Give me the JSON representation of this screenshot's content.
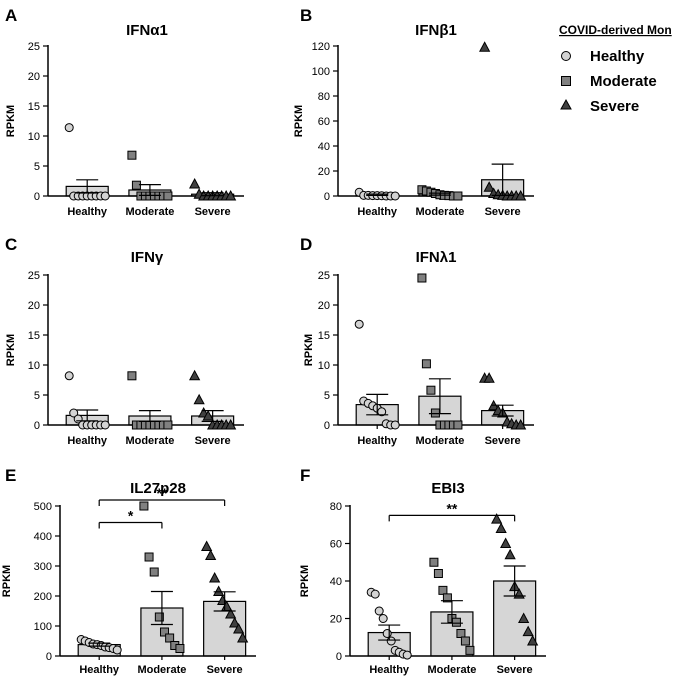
{
  "legend": {
    "title": "COVID-derived Mon",
    "items": [
      {
        "label": "Healthy",
        "marker": "circle",
        "fill": "#d3d3d3"
      },
      {
        "label": "Moderate",
        "marker": "square",
        "fill": "#808080"
      },
      {
        "label": "Severe",
        "marker": "triangle",
        "fill": "#404040"
      }
    ]
  },
  "colors": {
    "bar": "#d6d6d6",
    "stroke": "#000000"
  },
  "chart_data": [
    {
      "id": "A",
      "type": "bar",
      "title": "IFNα1",
      "ylabel": "RPKM",
      "ylim": [
        0,
        25
      ],
      "yticks": [
        0,
        5,
        10,
        15,
        20,
        25
      ],
      "categories": [
        "Healthy",
        "Moderate",
        "Severe"
      ],
      "values": [
        1.6,
        1.0,
        0.3
      ],
      "errors": [
        1.1,
        0.9,
        0.25
      ],
      "points": [
        [
          11.4,
          0,
          0,
          0,
          0,
          0,
          0,
          0,
          0
        ],
        [
          6.8,
          1.8,
          0,
          0,
          0,
          0,
          0,
          0,
          0
        ],
        [
          2.0,
          0.3,
          0,
          0,
          0,
          0,
          0,
          0,
          0
        ]
      ],
      "significance": []
    },
    {
      "id": "B",
      "type": "bar",
      "title": "IFNβ1",
      "ylabel": "RPKM",
      "ylim": [
        0,
        120
      ],
      "yticks": [
        0,
        20,
        40,
        60,
        80,
        100,
        120
      ],
      "categories": [
        "Healthy",
        "Moderate",
        "Severe"
      ],
      "values": [
        1.0,
        1.5,
        13
      ],
      "errors": [
        0.5,
        0.8,
        12.5
      ],
      "points": [
        [
          3,
          0.5,
          0.5,
          0.3,
          0.3,
          0.2,
          0,
          0,
          0
        ],
        [
          5,
          4,
          3,
          2,
          1,
          0.5,
          0.3,
          0,
          0
        ],
        [
          119,
          7,
          2,
          1,
          0.5,
          0,
          0,
          0,
          0
        ]
      ],
      "significance": []
    },
    {
      "id": "C",
      "type": "bar",
      "title": "IFNγ",
      "ylabel": "RPKM",
      "ylim": [
        0,
        25
      ],
      "yticks": [
        0,
        5,
        10,
        15,
        20,
        25
      ],
      "categories": [
        "Healthy",
        "Moderate",
        "Severe"
      ],
      "values": [
        1.6,
        1.5,
        1.5
      ],
      "errors": [
        0.9,
        0.9,
        0.9
      ],
      "points": [
        [
          8.2,
          2.0,
          1.0,
          0,
          0,
          0,
          0,
          0,
          0
        ],
        [
          8.2,
          0,
          0,
          0,
          0,
          0,
          0,
          0,
          0
        ],
        [
          8.2,
          4.2,
          2.0,
          1.5,
          0,
          0,
          0,
          0,
          0
        ]
      ],
      "significance": []
    },
    {
      "id": "D",
      "type": "bar",
      "title": "IFNλ1",
      "ylabel": "RPKM",
      "ylim": [
        0,
        25
      ],
      "yticks": [
        0,
        5,
        10,
        15,
        20,
        25
      ],
      "categories": [
        "Healthy",
        "Moderate",
        "Severe"
      ],
      "values": [
        3.4,
        4.8,
        2.4
      ],
      "errors": [
        1.7,
        2.9,
        0.9
      ],
      "points": [
        [
          16.8,
          4.0,
          3.6,
          3.2,
          2.8,
          2.2,
          0.2,
          0,
          0
        ],
        [
          24.5,
          10.2,
          5.8,
          2.0,
          0,
          0,
          0,
          0,
          0
        ],
        [
          7.8,
          7.8,
          3.2,
          2.4,
          2.0,
          0.5,
          0.2,
          0,
          0
        ]
      ],
      "significance": []
    },
    {
      "id": "E",
      "type": "bar",
      "title": "IL27p28",
      "ylabel": "RPKM",
      "ylim": [
        0,
        500
      ],
      "yticks": [
        0,
        100,
        200,
        300,
        400,
        500
      ],
      "categories": [
        "Healthy",
        "Moderate",
        "Severe"
      ],
      "values": [
        38,
        160,
        182
      ],
      "errors": [
        5,
        55,
        32
      ],
      "points": [
        [
          55,
          50,
          45,
          40,
          38,
          35,
          30,
          28,
          25,
          20
        ],
        [
          500,
          330,
          280,
          130,
          80,
          60,
          35,
          25
        ],
        [
          365,
          335,
          260,
          215,
          185,
          165,
          140,
          110,
          90,
          60
        ]
      ],
      "significance": [
        {
          "from": 0,
          "to": 1,
          "label": "*",
          "y": 445
        },
        {
          "from": 0,
          "to": 2,
          "label": "**",
          "y": 520
        }
      ]
    },
    {
      "id": "F",
      "type": "bar",
      "title": "EBI3",
      "ylabel": "RPKM",
      "ylim": [
        0,
        80
      ],
      "yticks": [
        0,
        20,
        40,
        60,
        80
      ],
      "categories": [
        "Healthy",
        "Moderate",
        "Severe"
      ],
      "values": [
        12.5,
        23.5,
        40
      ],
      "errors": [
        4,
        6,
        8
      ],
      "points": [
        [
          34,
          33,
          24,
          20,
          12,
          8,
          3,
          2,
          1,
          0.5
        ],
        [
          50,
          44,
          35,
          31,
          20,
          18,
          12,
          8,
          3
        ],
        [
          73,
          68,
          60,
          54,
          37,
          33,
          20,
          13,
          8
        ]
      ],
      "significance": [
        {
          "from": 0,
          "to": 2,
          "label": "**",
          "y": 75
        }
      ]
    }
  ]
}
